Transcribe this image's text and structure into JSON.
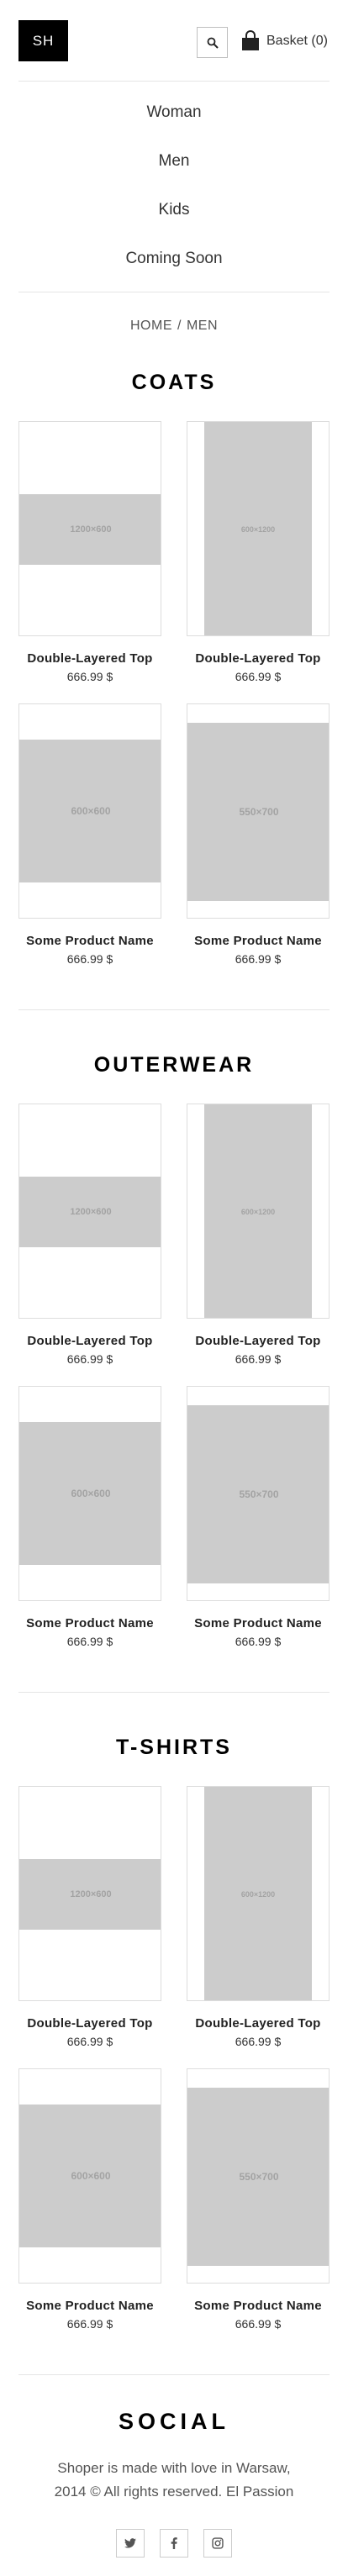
{
  "header": {
    "logo": "SH",
    "basket_label": "Basket (0)"
  },
  "nav": {
    "items": [
      "Woman",
      "Men",
      "Kids",
      "Coming Soon"
    ]
  },
  "breadcrumb": {
    "home": "HOME",
    "separator": "/",
    "current": "MEN"
  },
  "sections": [
    {
      "title": "COATS",
      "products": [
        {
          "name": "Double-Layered Top",
          "price": "666.99 $",
          "placeholder": "1200×600"
        },
        {
          "name": "Double-Layered Top",
          "price": "666.99 $",
          "placeholder": "600×1200"
        },
        {
          "name": "Some Product Name",
          "price": "666.99 $",
          "placeholder": "600×600"
        },
        {
          "name": "Some Product Name",
          "price": "666.99 $",
          "placeholder": "550×700"
        }
      ]
    },
    {
      "title": "OUTERWEAR",
      "products": [
        {
          "name": "Double-Layered Top",
          "price": "666.99 $",
          "placeholder": "1200×600"
        },
        {
          "name": "Double-Layered Top",
          "price": "666.99 $",
          "placeholder": "600×1200"
        },
        {
          "name": "Some Product Name",
          "price": "666.99 $",
          "placeholder": "600×600"
        },
        {
          "name": "Some Product Name",
          "price": "666.99 $",
          "placeholder": "550×700"
        }
      ]
    },
    {
      "title": "T-SHIRTS",
      "products": [
        {
          "name": "Double-Layered Top",
          "price": "666.99 $",
          "placeholder": "1200×600"
        },
        {
          "name": "Double-Layered Top",
          "price": "666.99 $",
          "placeholder": "600×1200"
        },
        {
          "name": "Some Product Name",
          "price": "666.99 $",
          "placeholder": "600×600"
        },
        {
          "name": "Some Product Name",
          "price": "666.99 $",
          "placeholder": "550×700"
        }
      ]
    }
  ],
  "footer": {
    "social_title": "SOCIAL",
    "text_line1": "Shoper is made with love in Warsaw,",
    "text_line2": "2014 © All rights reserved. El Passion",
    "icons": [
      "twitter-icon",
      "facebook-icon",
      "instagram-icon"
    ]
  },
  "colors": {
    "logo_bg": "#000000",
    "placeholder": "#cccccc",
    "divider": "#e5e5e5"
  }
}
